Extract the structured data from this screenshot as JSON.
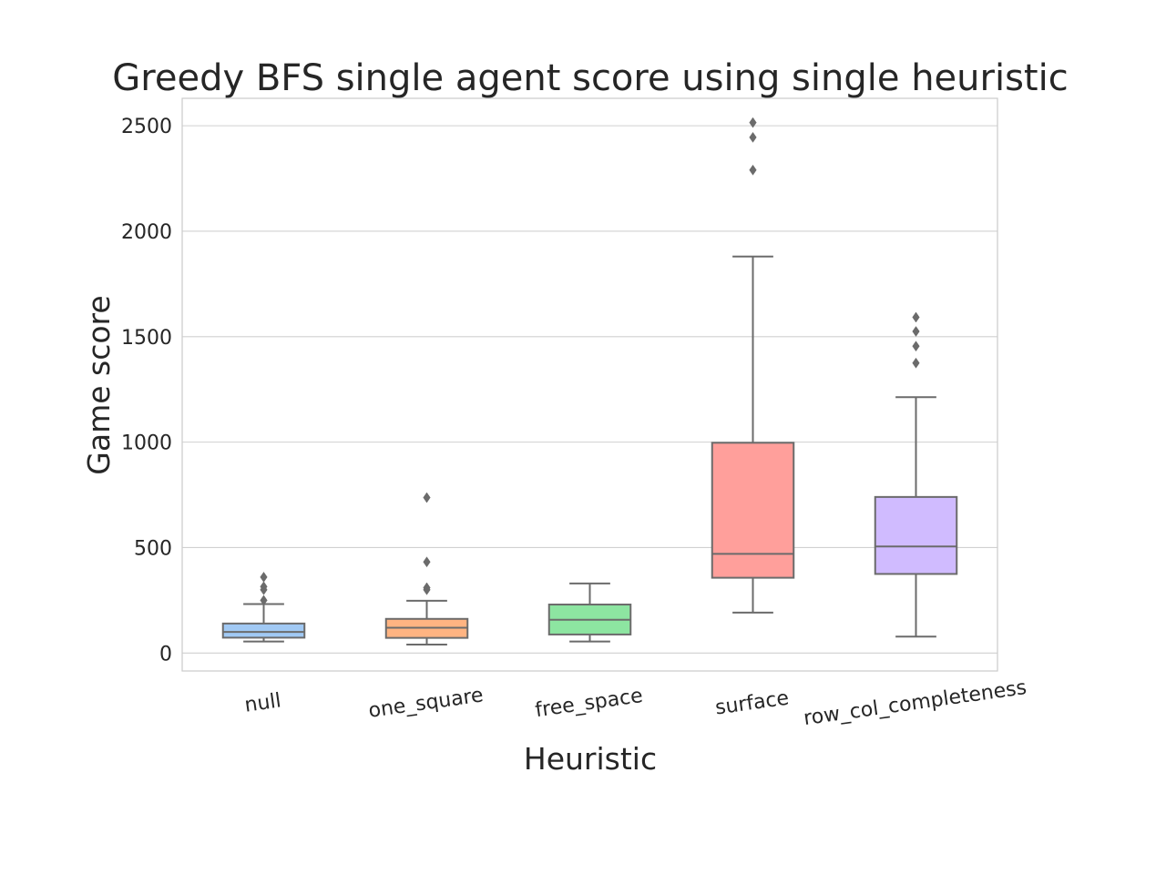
{
  "chart_data": {
    "type": "box",
    "title": "Greedy BFS single agent score using single heuristic",
    "xlabel": "Heuristic",
    "ylabel": "Game score",
    "ylim": [
      -85,
      2630
    ],
    "yticks": [
      0,
      500,
      1000,
      1500,
      2000,
      2500
    ],
    "grid": "horizontal",
    "categories": [
      "null",
      "one_square",
      "free_space",
      "surface",
      "row_col_completeness"
    ],
    "boxes": [
      {
        "category": "null",
        "whisker_low": 55,
        "q1": 73,
        "median": 100,
        "q3": 140,
        "whisker_high": 232,
        "outliers": [
          250,
          300,
          315,
          360
        ],
        "color": "#a1c9f4"
      },
      {
        "category": "one_square",
        "whisker_low": 40,
        "q1": 72,
        "median": 120,
        "q3": 162,
        "whisker_high": 248,
        "outliers": [
          300,
          310,
          432,
          737
        ],
        "color": "#ffb482"
      },
      {
        "category": "free_space",
        "whisker_low": 55,
        "q1": 88,
        "median": 158,
        "q3": 230,
        "whisker_high": 330,
        "outliers": [],
        "color": "#8de5a1"
      },
      {
        "category": "surface",
        "whisker_low": 192,
        "q1": 357,
        "median": 470,
        "q3": 997,
        "whisker_high": 1880,
        "outliers": [
          2290,
          2445,
          2515
        ],
        "color": "#ff9f9b"
      },
      {
        "category": "row_col_completeness",
        "whisker_low": 78,
        "q1": 375,
        "median": 505,
        "q3": 740,
        "whisker_high": 1213,
        "outliers": [
          1375,
          1455,
          1525,
          1592
        ],
        "color": "#d0bbff"
      }
    ],
    "colors": {
      "box_edge": "#6b6b6b",
      "grid": "#d0d0d0",
      "frame": "#cccccc",
      "text": "#262626"
    }
  }
}
